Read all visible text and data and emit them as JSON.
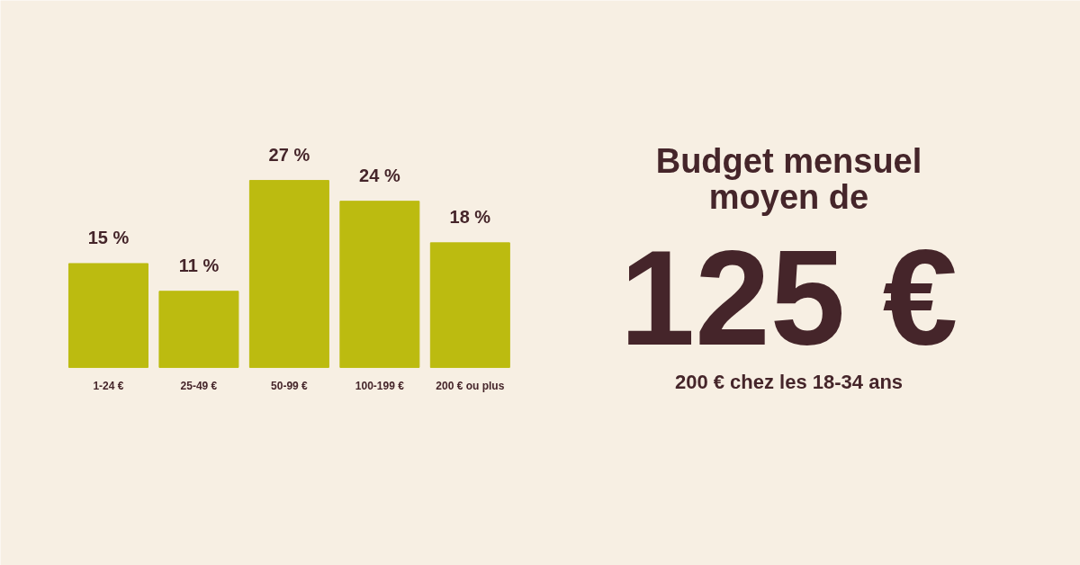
{
  "chart_data": {
    "type": "bar",
    "categories": [
      "1-24 €",
      "25-49 €",
      "50-99 €",
      "100-199 €",
      "200 € ou plus"
    ],
    "values": [
      15,
      11,
      27,
      24,
      18
    ],
    "color": "#bcbb10",
    "value_labels": [
      "15 %",
      "11 %",
      "27 %",
      "24 %",
      "18 %"
    ],
    "annotations": [
      "Budget mensuel moyen de",
      "125 €",
      "200 € chez les 18-34 ans"
    ]
  }
}
